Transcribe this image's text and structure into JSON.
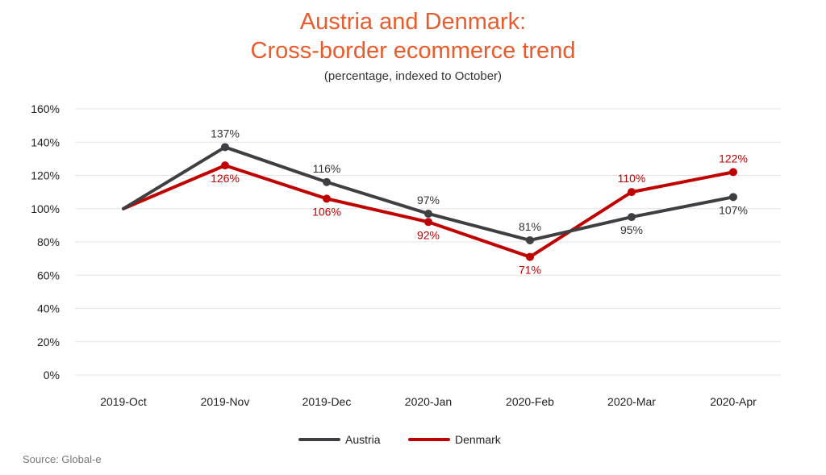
{
  "chart_data": {
    "type": "line",
    "title_line1": "Austria and Denmark:",
    "title_line2": "Cross-border ecommerce trend",
    "subtitle": "(percentage, indexed to October)",
    "source": "Source: Global-e",
    "categories": [
      "2019-Oct",
      "2019-Nov",
      "2019-Dec",
      "2020-Jan",
      "2020-Feb",
      "2020-Mar",
      "2020-Apr"
    ],
    "ylim": [
      0,
      160
    ],
    "yticks": [
      0,
      20,
      40,
      60,
      80,
      100,
      120,
      140,
      160
    ],
    "ytick_labels": [
      "0%",
      "20%",
      "40%",
      "60%",
      "80%",
      "100%",
      "120%",
      "140%",
      "160%"
    ],
    "grid": true,
    "legend_position": "bottom",
    "series": [
      {
        "name": "Austria",
        "color": "#3d3f42",
        "values": [
          100,
          137,
          116,
          97,
          81,
          95,
          107
        ],
        "data_labels": [
          "",
          "137%",
          "116%",
          "97%",
          "81%",
          "95%",
          "107%"
        ],
        "label_side": [
          "",
          "above",
          "above",
          "above",
          "above",
          "below",
          "below"
        ]
      },
      {
        "name": "Denmark",
        "color": "#c00000",
        "values": [
          100,
          126,
          106,
          92,
          71,
          110,
          122
        ],
        "data_labels": [
          "",
          "126%",
          "106%",
          "92%",
          "71%",
          "110%",
          "122%"
        ],
        "label_side": [
          "",
          "below",
          "below",
          "below",
          "below",
          "above",
          "above"
        ]
      }
    ]
  }
}
